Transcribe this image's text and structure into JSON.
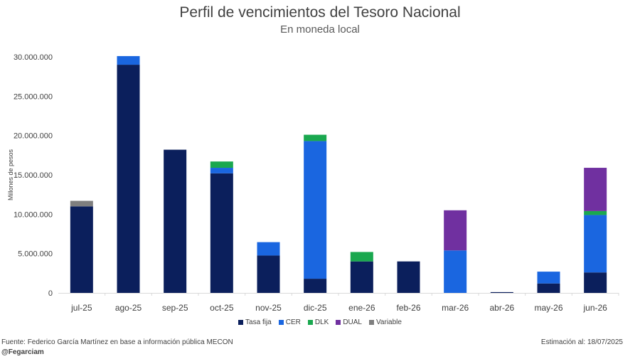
{
  "colors": {
    "Tasa fija": "#0b1f5c",
    "CER": "#1a66e0",
    "DLK": "#1aa84f",
    "DUAL": "#7030a0",
    "Variable": "#7f7f7f",
    "axis": "#d9d9d9",
    "text": "#404040"
  },
  "footer": {
    "source": "Fuente: Federico García Martínez en base a información pública MECON",
    "handle": "@Fegarciam",
    "estimate": "Estimación al: 18/07/2025"
  },
  "chart_data": {
    "type": "bar",
    "stacked": true,
    "title": "Perfil de vencimientos del Tesoro Nacional",
    "subtitle": "En moneda local",
    "ylabel": "Millones de pesos",
    "xlabel": "",
    "ylim": [
      0,
      30000000
    ],
    "yticks": [
      0,
      5000000,
      10000000,
      15000000,
      20000000,
      25000000,
      30000000
    ],
    "ytick_labels": [
      "0",
      "5.000.000",
      "10.000.000",
      "15.000.000",
      "20.000.000",
      "25.000.000",
      "30.000.000"
    ],
    "categories": [
      "jul-25",
      "ago-25",
      "sep-25",
      "oct-25",
      "nov-25",
      "dic-25",
      "ene-26",
      "feb-26",
      "mar-26",
      "abr-26",
      "may-26",
      "jun-26"
    ],
    "series": [
      {
        "name": "Tasa fija",
        "values": [
          11000000,
          29000000,
          18200000,
          15200000,
          4750000,
          1800000,
          4000000,
          4000000,
          0,
          100000,
          1200000,
          2600000
        ]
      },
      {
        "name": "CER",
        "values": [
          0,
          1100000,
          0,
          700000,
          1700000,
          17500000,
          0,
          0,
          5400000,
          0,
          1500000,
          7300000
        ]
      },
      {
        "name": "DLK",
        "values": [
          0,
          0,
          0,
          800000,
          0,
          800000,
          1200000,
          0,
          0,
          0,
          0,
          500000
        ]
      },
      {
        "name": "DUAL",
        "values": [
          0,
          0,
          0,
          0,
          0,
          0,
          0,
          0,
          5100000,
          0,
          0,
          5500000
        ]
      },
      {
        "name": "Variable",
        "values": [
          700000,
          0,
          0,
          0,
          0,
          0,
          0,
          0,
          0,
          0,
          0,
          0
        ]
      }
    ],
    "legend_position": "bottom"
  }
}
